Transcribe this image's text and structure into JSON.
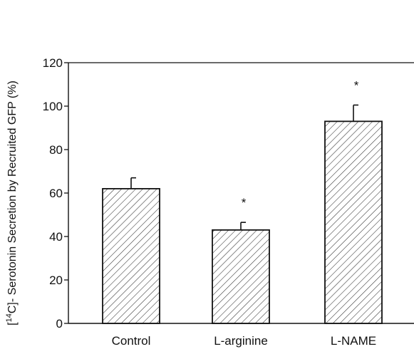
{
  "chart_data": {
    "type": "bar",
    "title": "",
    "xlabel": "",
    "ylabel": "[14C]- Serotonin Secretion by Recruited GFP (%)",
    "ylabel_parts": {
      "open": "[",
      "sup": "14",
      "rest": "C]- Serotonin Secretion by Recruited GFP (%)"
    },
    "ylim": [
      0,
      120
    ],
    "yticks": [
      0,
      20,
      40,
      60,
      80,
      100,
      120
    ],
    "grid": false,
    "top_reference_line": 120,
    "categories": [
      "Control",
      "L-arginine",
      "L-NAME"
    ],
    "values": [
      62,
      43,
      93
    ],
    "errors": [
      5,
      3.5,
      7.5
    ],
    "significance": [
      "",
      "*",
      "*"
    ],
    "bar_fill": "diagonal-hatch",
    "colors": {
      "bar_edge": "#111111",
      "hatch": "#333333",
      "axis": "#111111"
    }
  }
}
